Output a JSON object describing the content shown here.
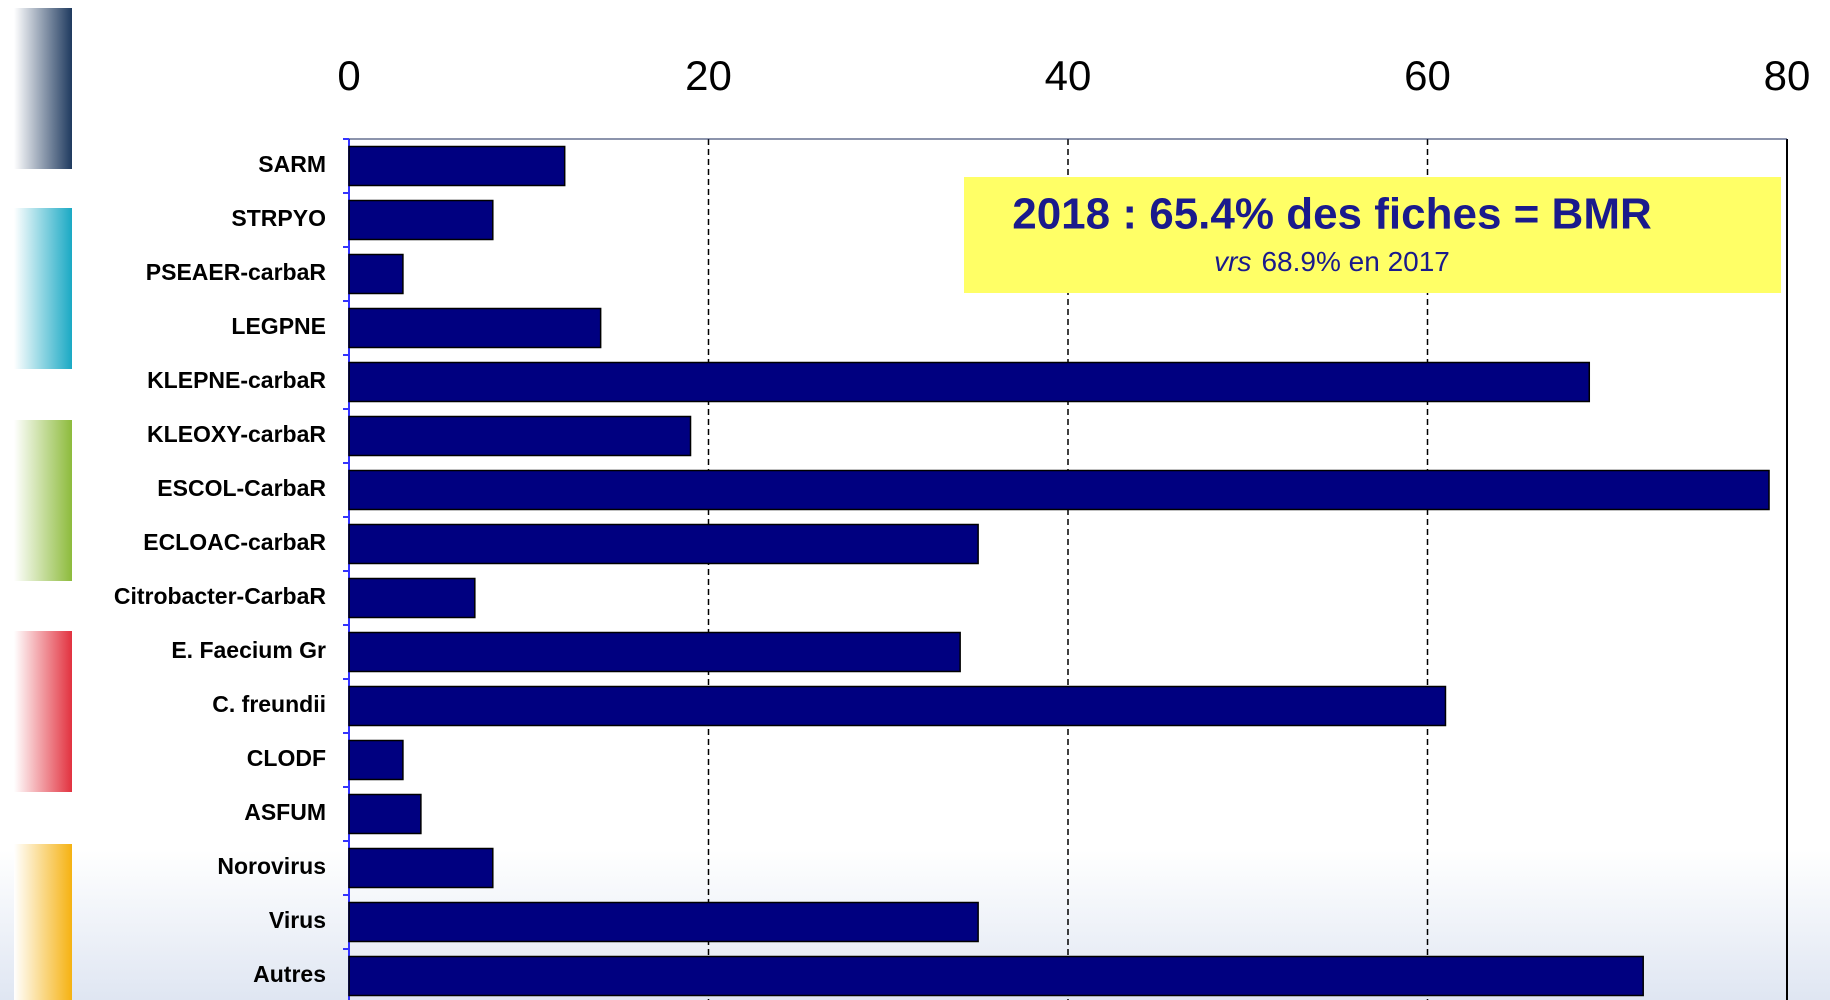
{
  "chart_data": {
    "type": "barh",
    "categories": [
      "SARM",
      "STRPYO",
      "PSEAER-carbaR",
      "LEGPNE",
      "KLEPNE-carbaR",
      "KLEOXY-carbaR",
      "ESCOL-CarbaR",
      "ECLOAC-carbaR",
      "Citrobacter-CarbaR",
      "E. Faecium Gr",
      "C. freundii",
      "CLODF",
      "ASFUM",
      "Norovirus",
      "Virus",
      "Autres"
    ],
    "values": [
      12,
      8,
      3,
      14,
      69,
      19,
      79,
      35,
      7,
      34,
      61,
      3,
      4,
      8,
      35,
      72
    ],
    "color": "#000080",
    "xlim": [
      0,
      80
    ],
    "xticks": [
      0,
      20,
      40,
      60,
      80
    ],
    "grid": true,
    "annotation": {
      "text": "2018 : 65.4% des fiches = BMR",
      "note_prefix": "vrs",
      "note": "68.9%  en 2017"
    }
  }
}
